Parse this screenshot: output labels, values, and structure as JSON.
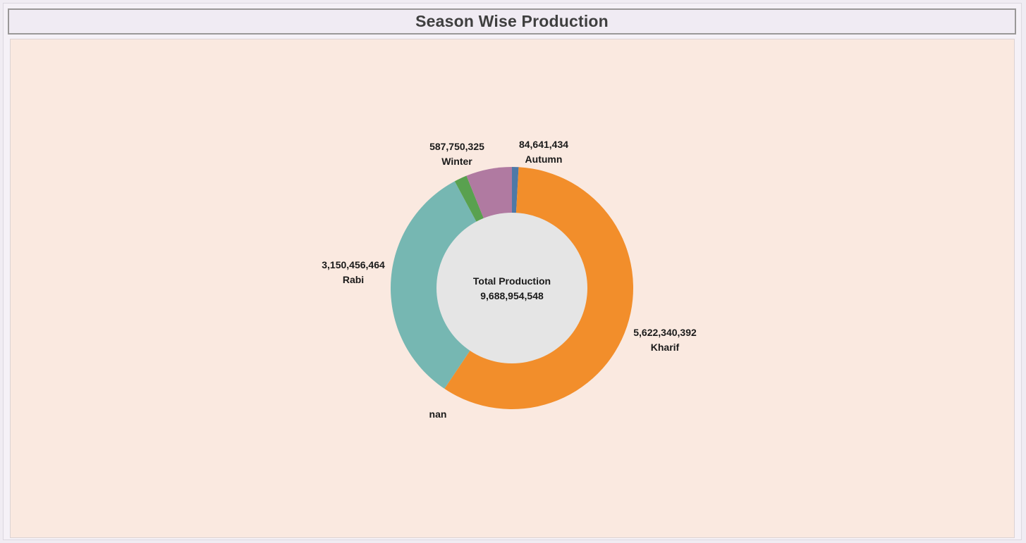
{
  "title": "Season Wise Production",
  "chart_data": {
    "type": "pie",
    "title": "Season Wise Production",
    "donut": true,
    "center_label": {
      "title": "Total Production",
      "value": "9,688,954,548"
    },
    "slices": [
      {
        "name": "Autumn",
        "value": 84641434,
        "value_label": "84,641,434",
        "color": "#4e79a7"
      },
      {
        "name": "Kharif",
        "value": 5622340392,
        "value_label": "5,622,340,392",
        "color": "#f28e2b"
      },
      {
        "name": "nan",
        "value": 0,
        "value_label": "",
        "color": "#e15759"
      },
      {
        "name": "Rabi",
        "value": 3150456464,
        "value_label": "3,150,456,464",
        "color": "#76b7b2"
      },
      {
        "name": "",
        "value": 163766000,
        "value_label": "",
        "color": "#59a14f"
      },
      {
        "name": "Winter",
        "value": 587750325,
        "value_label": "587,750,325",
        "color": "#b07aa1"
      }
    ],
    "colors": {
      "panel_background": "#fae9e0",
      "center_fill": "#e5e5e5",
      "title_color": "#3f3f3f"
    }
  }
}
